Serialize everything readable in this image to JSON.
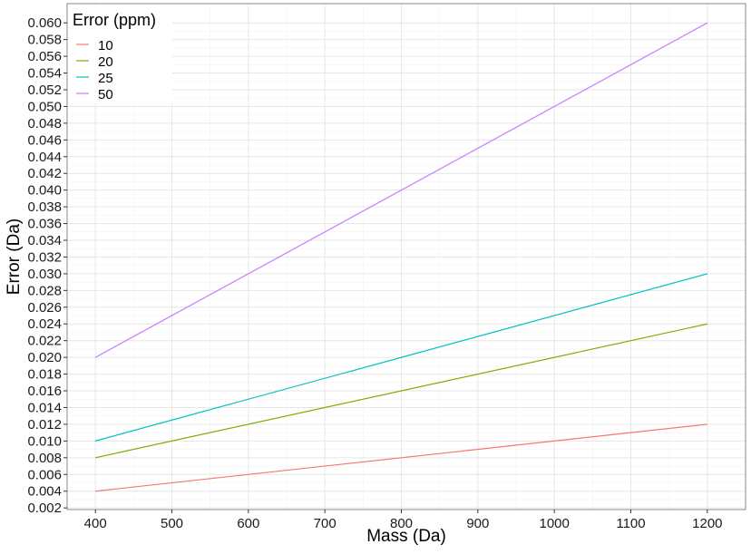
{
  "chart_data": {
    "type": "line",
    "title": "",
    "xlabel": "Mass (Da)",
    "ylabel": "Error (Da)",
    "xlim": [
      363,
      1250
    ],
    "ylim": [
      0.0018,
      0.0623
    ],
    "x_ticks": [
      400,
      500,
      600,
      700,
      800,
      900,
      1000,
      1100,
      1200
    ],
    "x_tick_labels": [
      "400",
      "500",
      "600",
      "700",
      "800",
      "900",
      "1000",
      "1100",
      "1200"
    ],
    "y_ticks": [
      0.002,
      0.004,
      0.006,
      0.008,
      0.01,
      0.012,
      0.014,
      0.016,
      0.018,
      0.02,
      0.022,
      0.024,
      0.026,
      0.028,
      0.03,
      0.032,
      0.034,
      0.036,
      0.038,
      0.04,
      0.042,
      0.044,
      0.046,
      0.048,
      0.05,
      0.052,
      0.054,
      0.056,
      0.058,
      0.06
    ],
    "y_tick_labels": [
      "0.002",
      "0.004",
      "0.006",
      "0.008",
      "0.010",
      "0.012",
      "0.014",
      "0.016",
      "0.018",
      "0.020",
      "0.022",
      "0.024",
      "0.026",
      "0.028",
      "0.030",
      "0.032",
      "0.034",
      "0.036",
      "0.038",
      "0.040",
      "0.042",
      "0.044",
      "0.046",
      "0.048",
      "0.050",
      "0.052",
      "0.054",
      "0.056",
      "0.058",
      "0.060"
    ],
    "grid": true,
    "legend": {
      "title": "Error (ppm)",
      "position": "top-left"
    },
    "series": [
      {
        "name": "10",
        "color": "#F8766D",
        "x": [
          400,
          1200
        ],
        "y": [
          0.004,
          0.012
        ]
      },
      {
        "name": "20",
        "color": "#7CAE00",
        "x": [
          400,
          1200
        ],
        "y": [
          0.008,
          0.024
        ]
      },
      {
        "name": "25",
        "color": "#00BFC4",
        "x": [
          400,
          1200
        ],
        "y": [
          0.01,
          0.03
        ]
      },
      {
        "name": "50",
        "color": "#C77CFF",
        "x": [
          400,
          1200
        ],
        "y": [
          0.02,
          0.06
        ]
      }
    ]
  }
}
